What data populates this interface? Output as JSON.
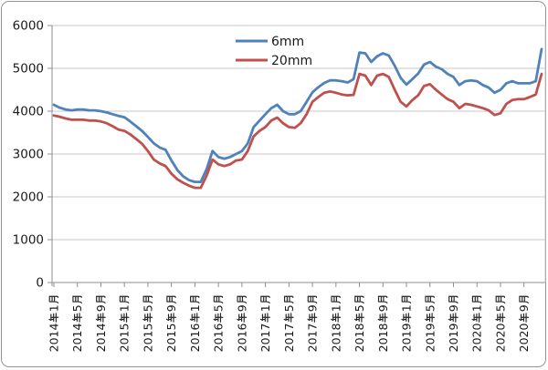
{
  "chart_data": {
    "type": "line",
    "title": "",
    "xlabel": "",
    "ylabel": "",
    "ylim": [
      0,
      6000
    ],
    "ytick_step": 1000,
    "yticks": [
      0,
      1000,
      2000,
      3000,
      4000,
      5000,
      6000
    ],
    "grid": "horizontal",
    "legend_position": "top-center-inside",
    "x_monthly_from": "2014年1月",
    "x_label_interval_months": 4,
    "x_labels_shown": [
      "2014年1月",
      "2014年5月",
      "2014年9月",
      "2015年1月",
      "2015年5月",
      "2015年9月",
      "2016年1月",
      "2016年5月",
      "2016年9月",
      "2017年1月",
      "2017年5月",
      "2017年9月",
      "2018年1月",
      "2018年5月",
      "2018年9月",
      "2019年1月",
      "2019年5月",
      "2019年9月",
      "2020年1月",
      "2020年5月",
      "2020年9月"
    ],
    "series": [
      {
        "name": "6mm",
        "color": "#4F81BD",
        "values": [
          4150,
          4080,
          4040,
          4020,
          4040,
          4040,
          4020,
          4020,
          4000,
          3970,
          3930,
          3890,
          3860,
          3760,
          3650,
          3540,
          3400,
          3250,
          3150,
          3100,
          2850,
          2630,
          2480,
          2390,
          2350,
          2350,
          2650,
          3070,
          2930,
          2890,
          2930,
          3000,
          3070,
          3250,
          3630,
          3780,
          3930,
          4070,
          4150,
          4000,
          3930,
          3930,
          4000,
          4220,
          4440,
          4560,
          4660,
          4720,
          4720,
          4700,
          4670,
          4750,
          5370,
          5350,
          5150,
          5280,
          5350,
          5300,
          5060,
          4780,
          4620,
          4750,
          4880,
          5090,
          5150,
          5040,
          4980,
          4870,
          4800,
          4610,
          4700,
          4720,
          4700,
          4610,
          4550,
          4430,
          4500,
          4650,
          4700,
          4650,
          4650,
          4650,
          4700,
          5450
        ]
      },
      {
        "name": "20mm",
        "color": "#C0504D",
        "values": [
          3900,
          3870,
          3830,
          3800,
          3800,
          3800,
          3780,
          3780,
          3760,
          3720,
          3650,
          3570,
          3540,
          3460,
          3350,
          3240,
          3070,
          2870,
          2780,
          2720,
          2540,
          2410,
          2330,
          2260,
          2210,
          2210,
          2500,
          2870,
          2760,
          2720,
          2760,
          2850,
          2870,
          3070,
          3410,
          3540,
          3630,
          3780,
          3850,
          3720,
          3630,
          3610,
          3720,
          3930,
          4220,
          4330,
          4430,
          4460,
          4430,
          4390,
          4370,
          4380,
          4870,
          4830,
          4610,
          4830,
          4870,
          4800,
          4500,
          4220,
          4110,
          4260,
          4370,
          4590,
          4630,
          4500,
          4390,
          4280,
          4220,
          4070,
          4170,
          4150,
          4110,
          4070,
          4020,
          3910,
          3950,
          4170,
          4260,
          4280,
          4280,
          4330,
          4390,
          4870
        ]
      }
    ]
  },
  "legend": {
    "items": [
      {
        "label": "6mm"
      },
      {
        "label": "20mm"
      }
    ]
  },
  "colors": {
    "series_6mm": "#4F81BD",
    "series_20mm": "#C0504D",
    "gridline": "#c7c7c7",
    "axis_line": "#8f8f8f",
    "text": "#1a1a1a",
    "frame_border": "#8f9499",
    "background": "#ffffff"
  }
}
